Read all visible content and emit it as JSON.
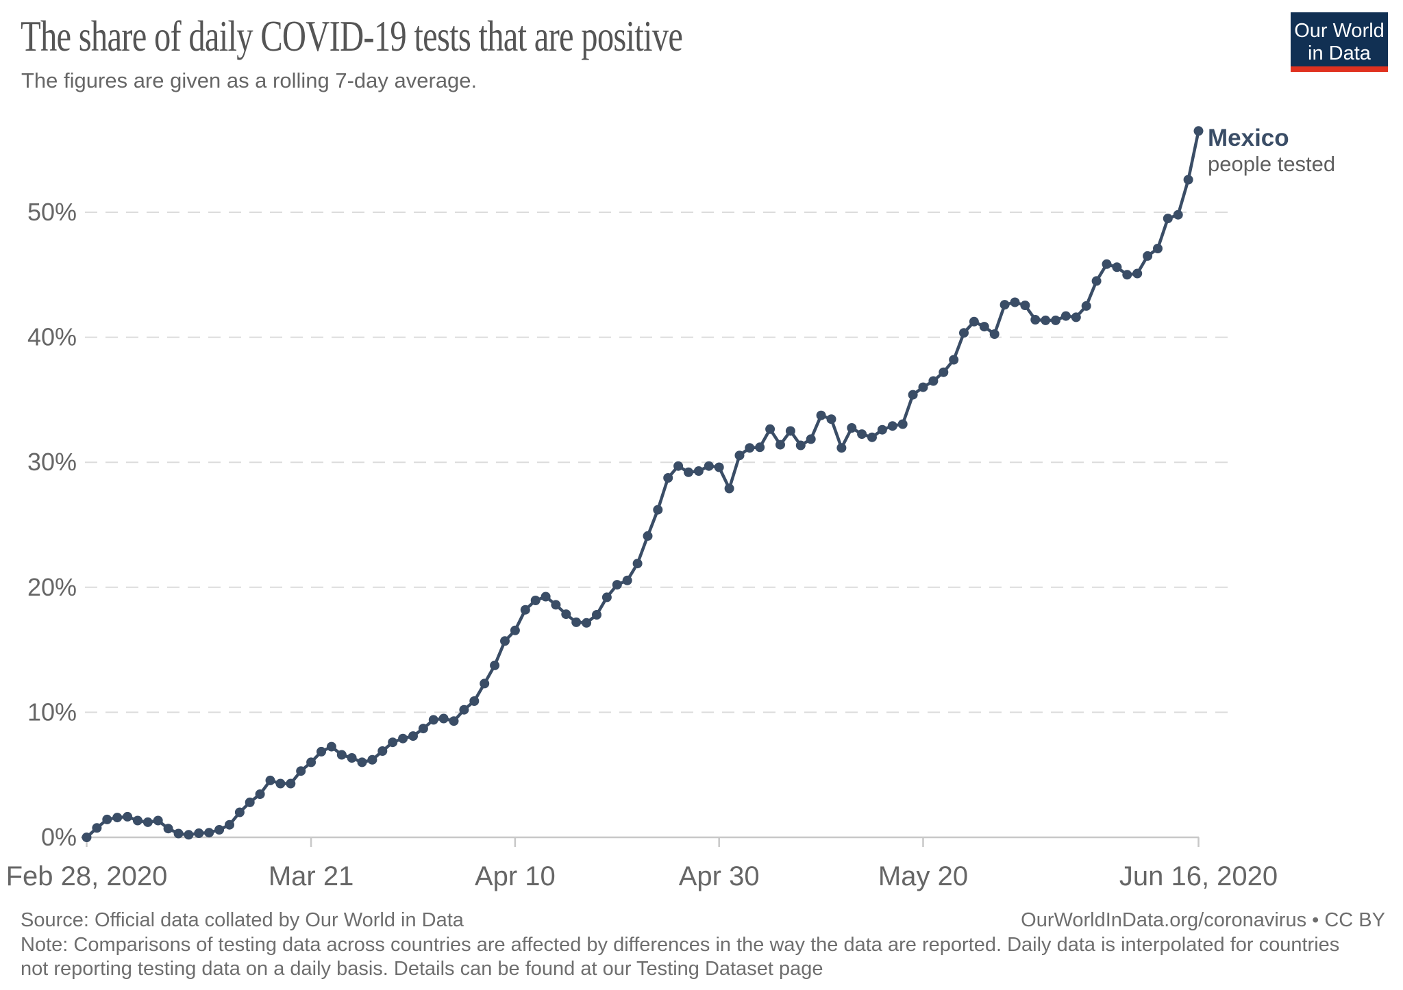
{
  "header": {
    "title": "The share of daily COVID-19 tests that are positive",
    "subtitle": "The figures are given as a rolling 7-day average.",
    "logo": {
      "line1": "Our World",
      "line2": "in Data",
      "bg_color": "#113053",
      "stripe_color": "#e0311f",
      "text_color": "#ffffff"
    }
  },
  "annotation": {
    "country": "Mexico",
    "metric": "people tested"
  },
  "chart_data": {
    "type": "line",
    "title": "The share of daily COVID-19 tests that are positive",
    "subtitle": "The figures are given as a rolling 7-day average.",
    "x_start_date": "Feb 28, 2020",
    "x_end_date": "Jun 16, 2020",
    "frequency": "daily",
    "x_tick_labels": [
      "Feb 28, 2020",
      "Mar 21",
      "Apr 10",
      "Apr 30",
      "May 20",
      "Jun 16, 2020"
    ],
    "x_tick_days": [
      0,
      22,
      42,
      62,
      82,
      109
    ],
    "y_tick_labels": [
      "0%",
      "10%",
      "20%",
      "30%",
      "40%",
      "50%"
    ],
    "y_tick_values": [
      0,
      10,
      20,
      30,
      40,
      50
    ],
    "ylim": [
      0,
      57.5
    ],
    "grid": "horizontal-dashed",
    "legend_position": "end-of-line-label",
    "series": [
      {
        "name": "Mexico",
        "label_sub": "people tested",
        "color": "#3a4d66",
        "unit": "%",
        "values": [
          0.0,
          0.75,
          1.43,
          1.58,
          1.65,
          1.34,
          1.21,
          1.34,
          0.7,
          0.3,
          0.2,
          0.33,
          0.37,
          0.6,
          1.0,
          2.0,
          2.8,
          3.45,
          4.55,
          4.3,
          4.3,
          5.3,
          6.0,
          6.85,
          7.25,
          6.6,
          6.35,
          6.0,
          6.2,
          6.9,
          7.6,
          7.9,
          8.1,
          8.7,
          9.4,
          9.5,
          9.3,
          10.2,
          10.9,
          12.3,
          13.75,
          15.7,
          16.55,
          18.2,
          18.95,
          19.25,
          18.6,
          17.85,
          17.2,
          17.15,
          17.8,
          19.2,
          20.2,
          20.55,
          21.9,
          24.1,
          26.2,
          28.75,
          29.7,
          29.2,
          29.3,
          29.7,
          29.6,
          27.9,
          30.55,
          31.15,
          31.2,
          32.65,
          31.4,
          32.5,
          31.35,
          31.85,
          33.75,
          33.45,
          31.15,
          32.75,
          32.25,
          32.0,
          32.6,
          32.9,
          33.05,
          35.4,
          36.0,
          36.5,
          37.2,
          38.2,
          40.35,
          41.25,
          40.85,
          40.25,
          42.6,
          42.8,
          42.55,
          41.4,
          41.35,
          41.35,
          41.7,
          41.6,
          42.5,
          44.5,
          45.85,
          45.6,
          45.0,
          45.1,
          46.5,
          47.1,
          49.5,
          49.8,
          52.6,
          56.5
        ]
      }
    ],
    "colors": {
      "grid": "#dcdcdc",
      "axis": "#c8c8c8",
      "tick_text": "#666666"
    }
  },
  "footer": {
    "source": "Source: Official data collated by Our World in Data",
    "link": "OurWorldInData.org/coronavirus • CC BY",
    "note": "Note: Comparisons of testing data across countries are affected by differences in the way the data are reported. Daily data is interpolated for countries not reporting testing data on a daily basis. Details can be found at our Testing Dataset page"
  }
}
